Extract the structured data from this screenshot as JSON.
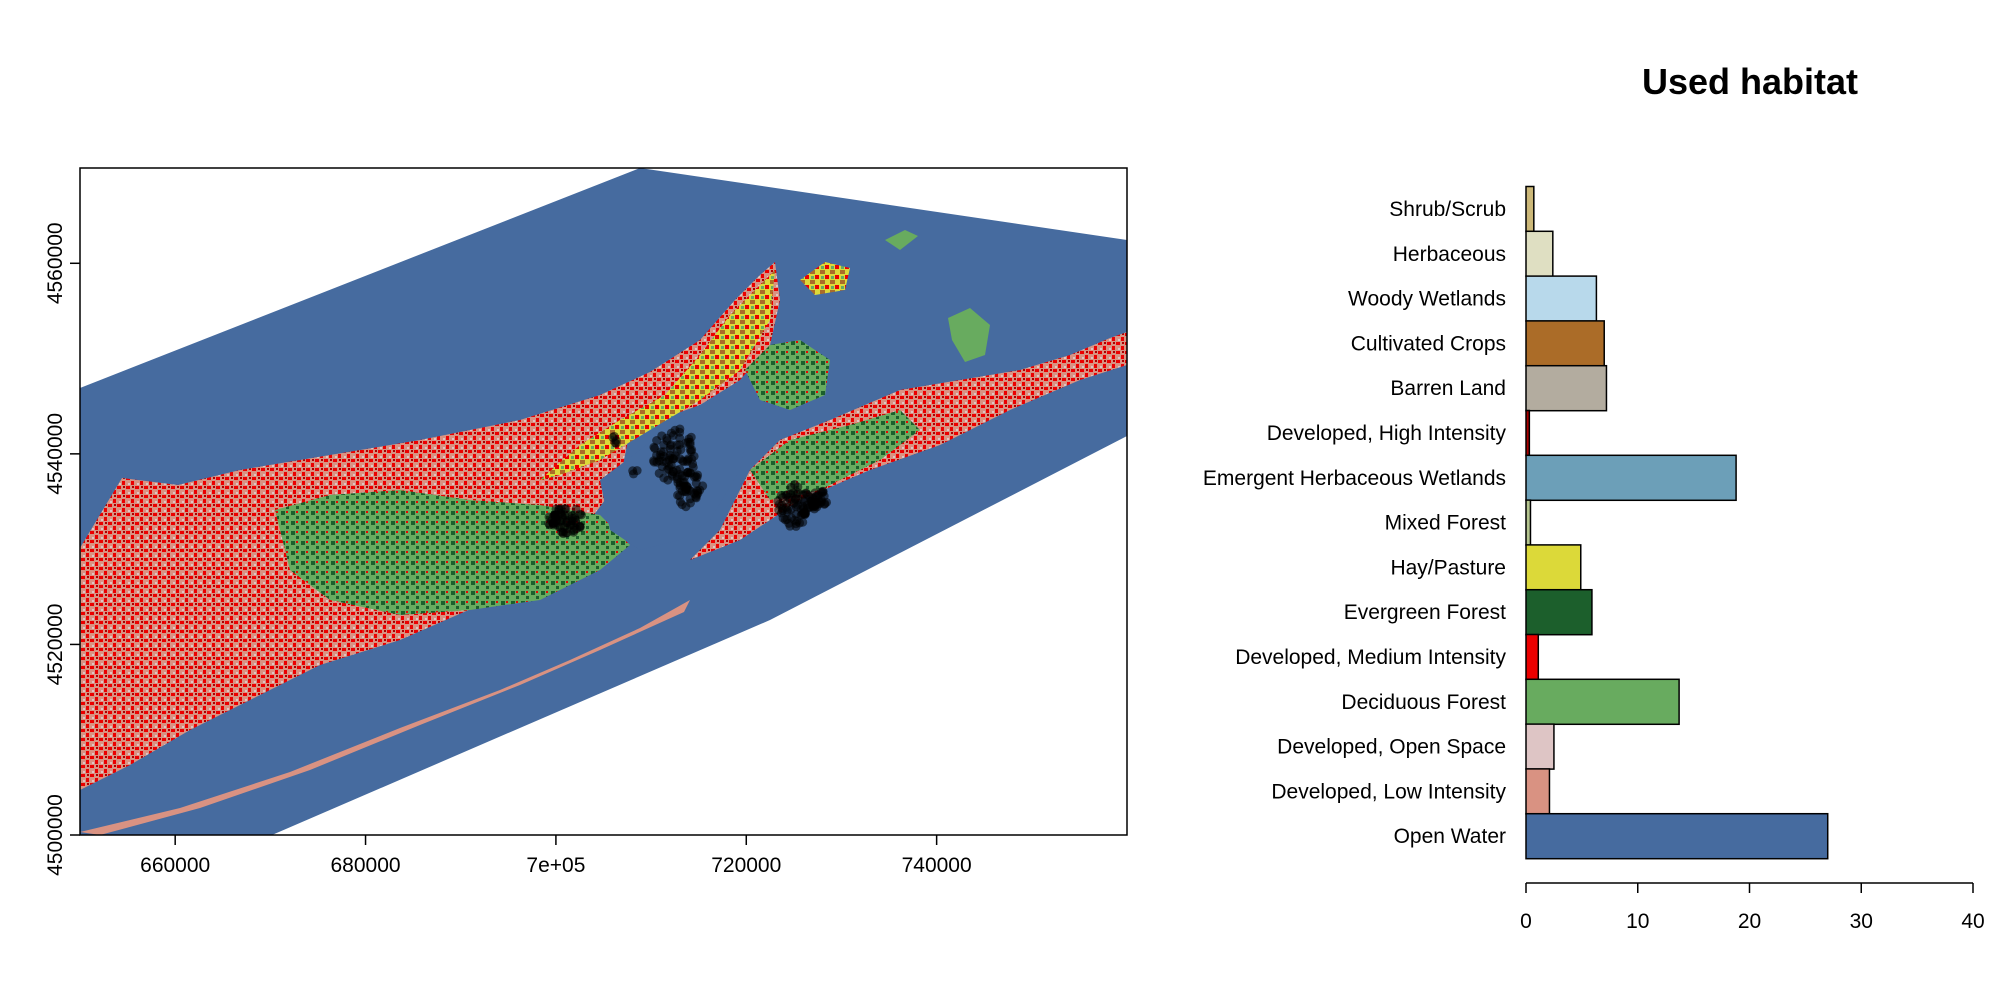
{
  "chart_data": [
    {
      "type": "map",
      "xlim": [
        650000,
        760000
      ],
      "ylim": [
        4500000,
        4570000
      ],
      "x_ticks": [
        660000,
        680000,
        700000,
        720000,
        740000
      ],
      "x_tick_labels": [
        "660000",
        "680000",
        "7e+05",
        "720000",
        "740000"
      ],
      "y_ticks": [
        4500000,
        4520000,
        4540000,
        4560000
      ],
      "y_tick_labels": [
        "4500000",
        "4520000",
        "4540000",
        "4560000"
      ],
      "colors": {
        "water": "#466b9f",
        "developed_high": "#ab0000",
        "developed_medium": "#eb0000",
        "developed_low": "#d99282",
        "developed_open": "#dec5c5",
        "deciduous": "#68ab5f",
        "evergreen": "#1c5f2c",
        "hay": "#dcd939",
        "crops": "#ab6c28",
        "wetlands": "#6c9fb8",
        "points": "#000000"
      }
    },
    {
      "type": "bar",
      "orientation": "horizontal",
      "title": "Used habitat",
      "categories": [
        "Shrub/Scrub",
        "Herbaceous",
        "Woody Wetlands",
        "Cultivated Crops",
        "Barren Land",
        "Developed, High Intensity",
        "Emergent Herbaceous Wetlands",
        "Mixed Forest",
        "Hay/Pasture",
        "Evergreen Forest",
        "Developed, Medium Intensity",
        "Deciduous Forest",
        "Developed, Open Space",
        "Developed, Low Intensity",
        "Open Water"
      ],
      "values": [
        0.7,
        2.4,
        6.3,
        7.0,
        7.2,
        0.3,
        18.8,
        0.4,
        4.9,
        5.9,
        1.1,
        13.7,
        2.5,
        2.1,
        27.0
      ],
      "bar_colors": [
        "#ccb879",
        "#dfdfc2",
        "#b8d9eb",
        "#ab6c28",
        "#b3ac9f",
        "#ab0000",
        "#6c9fb8",
        "#b5c58f",
        "#dcd939",
        "#1c5f2c",
        "#eb0000",
        "#68ab5f",
        "#dec5c5",
        "#d99282",
        "#466b9f"
      ],
      "xlim": [
        0,
        40
      ],
      "x_ticks": [
        0,
        10,
        20,
        30,
        40
      ],
      "xlabel": "",
      "ylabel": ""
    }
  ]
}
